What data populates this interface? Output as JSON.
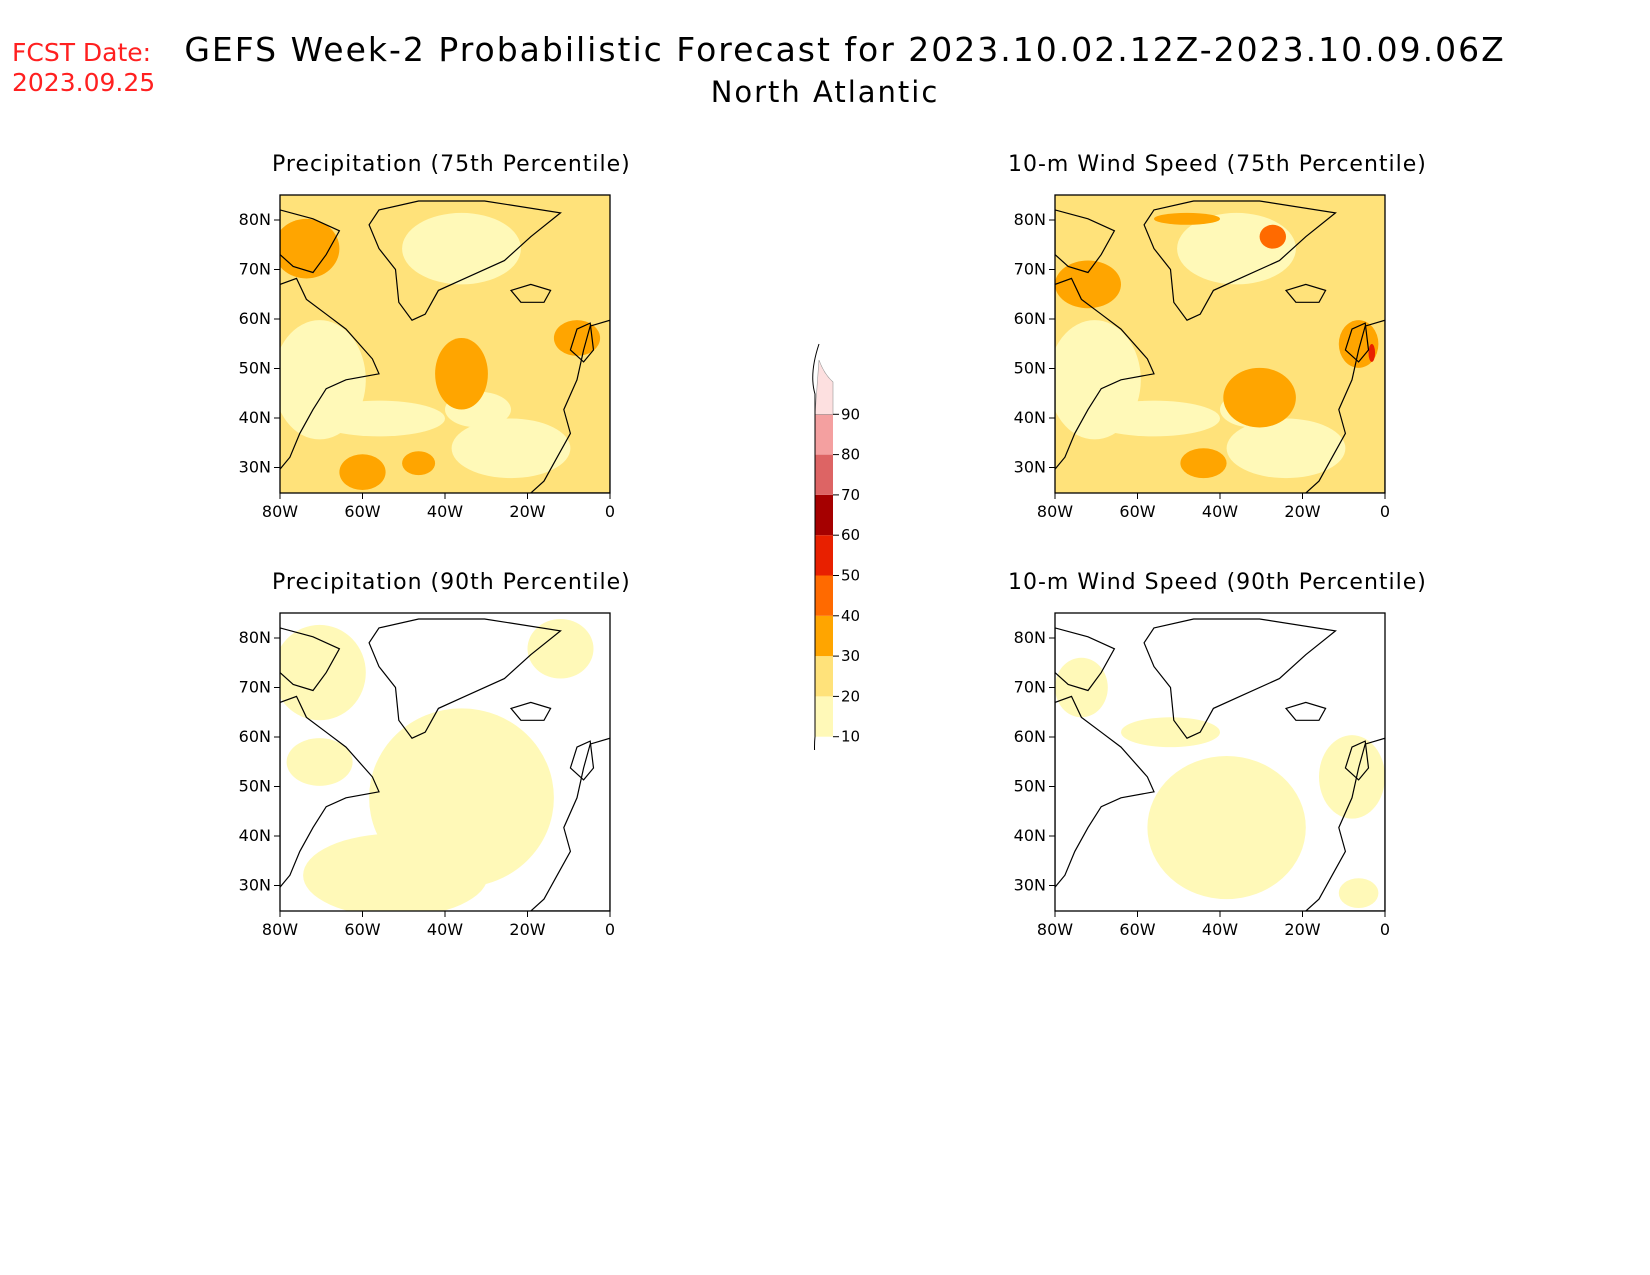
{
  "fcst": {
    "line1": "FCST Date:",
    "line2": "2023.09.25",
    "color": "#ff2020"
  },
  "title": {
    "main": "GEFS Week-2 Probabilistic Forecast for 2023.10.02.12Z-2023.10.09.06Z",
    "region": "North Atlantic"
  },
  "panels": [
    {
      "title": "Precipitation (75th Percentile)",
      "level": "high"
    },
    {
      "title": "10-m Wind Speed (75th Percentile)",
      "level": "high"
    },
    {
      "title": "Precipitation (90th Percentile)",
      "level": "low"
    },
    {
      "title": "10-m Wind Speed (90th Percentile)",
      "level": "low"
    }
  ],
  "axes": {
    "lat_labels": [
      "80N",
      "70N",
      "60N",
      "50N",
      "40N",
      "30N"
    ],
    "lon_labels": [
      "80W",
      "60W",
      "40W",
      "20W",
      "0"
    ]
  },
  "colorbar": {
    "levels": [
      "10",
      "20",
      "30",
      "40",
      "50",
      "60",
      "70",
      "80",
      "90"
    ],
    "colors": [
      "#fff9b8",
      "#ffe27a",
      "#ffa500",
      "#ff6a00",
      "#e82000",
      "#a50000",
      "#dd6464",
      "#f4a0a0",
      "#fde0e0"
    ]
  }
}
